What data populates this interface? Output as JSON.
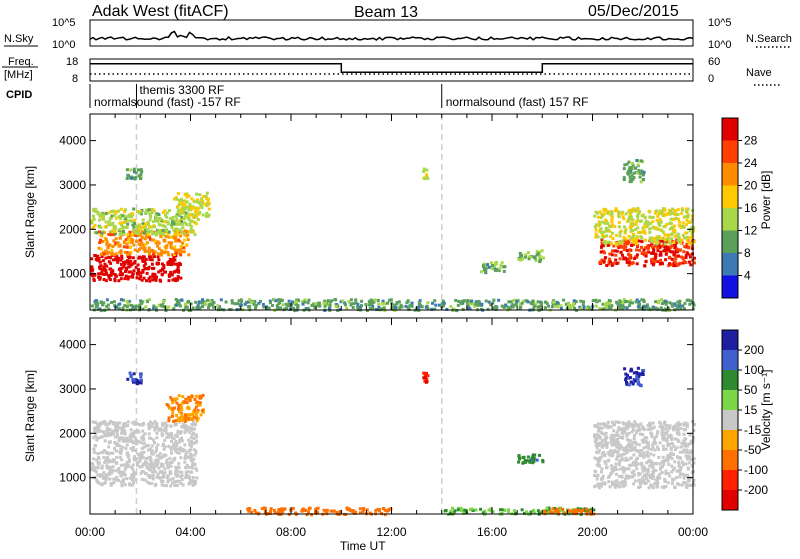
{
  "header": {
    "radar": "Adak West (fitACF)",
    "beam": "Beam 13",
    "date": "05/Dec/2015"
  },
  "strip_panels": {
    "nsky": {
      "label": "N.Sky",
      "ticks": [
        "10^5",
        "10^0"
      ]
    },
    "nsearch": {
      "label": "N.Search",
      "ticks": [
        "10^5",
        "10^0"
      ]
    },
    "freq": {
      "label_line1": "Freq.",
      "label_line2": "[MHz]",
      "ticks": [
        "18",
        "8"
      ]
    },
    "nave": {
      "label": "Nave",
      "ticks": [
        "60",
        "0"
      ]
    },
    "cpid": {
      "label": "CPID",
      "programs": [
        {
          "name": "normalsound (fast) -157 RF",
          "start_hour": 0.0,
          "end_hour": 14.0
        },
        {
          "name": "themis 3300 RF",
          "start_hour": 1.85,
          "end_hour": 1.85
        },
        {
          "name": "normalsound (fast) 157 RF",
          "start_hour": 14.0,
          "end_hour": 24.0
        }
      ]
    }
  },
  "chart_data": [
    {
      "type": "heatmap",
      "name": "power",
      "xlabel": "",
      "ylabel": "Slant Range [km]",
      "x_range_hours": [
        0,
        24
      ],
      "ylim": [
        180,
        4600
      ],
      "y_ticks": [
        1000,
        2000,
        3000,
        4000
      ],
      "x_ticks": [
        "00:00",
        "04:00",
        "08:00",
        "12:00",
        "16:00",
        "20:00",
        "00:00"
      ],
      "colorbar": {
        "label": "Power [dB]",
        "ticks": [
          "28",
          "24",
          "20",
          "16",
          "12",
          "8",
          "4"
        ],
        "colors": [
          "#e00000",
          "#ff4000",
          "#ff8c00",
          "#ffc800",
          "#a8d84a",
          "#5aa05a",
          "#3c7ab4",
          "#1010e0"
        ]
      },
      "regions": [
        {
          "t0": 0.0,
          "t1": 3.6,
          "r0": 850,
          "r1": 1450,
          "level": 29
        },
        {
          "t0": 0.3,
          "t1": 3.9,
          "r0": 1450,
          "r1": 2000,
          "level": 20
        },
        {
          "t0": 0.0,
          "t1": 4.2,
          "r0": 1900,
          "r1": 2500,
          "level": 12
        },
        {
          "t0": 1.4,
          "t1": 2.0,
          "r0": 3150,
          "r1": 3400,
          "level": 8
        },
        {
          "t0": 3.3,
          "t1": 4.7,
          "r0": 2250,
          "r1": 2850,
          "level": 14
        },
        {
          "t0": 17.0,
          "t1": 18.0,
          "r0": 1300,
          "r1": 1550,
          "level": 10
        },
        {
          "t0": 15.5,
          "t1": 16.5,
          "r0": 1050,
          "r1": 1300,
          "level": 8
        },
        {
          "t0": 13.2,
          "t1": 13.4,
          "r0": 3150,
          "r1": 3400,
          "level": 12
        },
        {
          "t0": 20.2,
          "t1": 24.0,
          "r0": 1200,
          "r1": 1800,
          "level": 26
        },
        {
          "t0": 20.0,
          "t1": 24.0,
          "r0": 1700,
          "r1": 2500,
          "level": 14
        },
        {
          "t0": 21.2,
          "t1": 22.0,
          "r0": 3100,
          "r1": 3600,
          "level": 8
        },
        {
          "t0": 0.0,
          "t1": 24.0,
          "r0": 200,
          "r1": 450,
          "level": 8
        }
      ]
    },
    {
      "type": "heatmap",
      "name": "velocity",
      "xlabel": "Time UT",
      "ylabel": "Slant Range [km]",
      "x_range_hours": [
        0,
        24
      ],
      "ylim": [
        180,
        4600
      ],
      "y_ticks": [
        1000,
        2000,
        3000,
        4000
      ],
      "x_ticks": [
        "00:00",
        "04:00",
        "08:00",
        "12:00",
        "16:00",
        "20:00",
        "00:00"
      ],
      "colorbar": {
        "label": "Velocity [m s⁻¹]",
        "ticks": [
          "200",
          "100",
          "50",
          "15",
          "-15",
          "-50",
          "-100",
          "-200"
        ],
        "colors": [
          "#1e1ea0",
          "#4060d0",
          "#2f8a2f",
          "#7cd64a",
          "#c8c8c8",
          "#ffa500",
          "#ff7000",
          "#ff2000",
          "#e00000"
        ]
      },
      "regions": [
        {
          "t0": 0.0,
          "t1": 4.2,
          "r0": 850,
          "r1": 2300,
          "level": 0
        },
        {
          "t0": 3.0,
          "t1": 4.5,
          "r0": 2300,
          "r1": 2900,
          "level": -30
        },
        {
          "t0": 1.4,
          "t1": 2.0,
          "r0": 3150,
          "r1": 3400,
          "level": 150
        },
        {
          "t0": 6.0,
          "t1": 12.0,
          "r0": 200,
          "r1": 350,
          "level": -40
        },
        {
          "t0": 13.2,
          "t1": 13.4,
          "r0": 3150,
          "r1": 3400,
          "level": -150
        },
        {
          "t0": 14.0,
          "t1": 20.0,
          "r0": 200,
          "r1": 350,
          "level": 30
        },
        {
          "t0": 17.0,
          "t1": 18.0,
          "r0": 1350,
          "r1": 1550,
          "level": 70
        },
        {
          "t0": 18.0,
          "t1": 20.0,
          "r0": 200,
          "r1": 330,
          "level": -60
        },
        {
          "t0": 20.0,
          "t1": 24.0,
          "r0": 800,
          "r1": 2300,
          "level": 0
        },
        {
          "t0": 21.2,
          "t1": 22.0,
          "r0": 3100,
          "r1": 3500,
          "level": 150
        }
      ]
    }
  ]
}
